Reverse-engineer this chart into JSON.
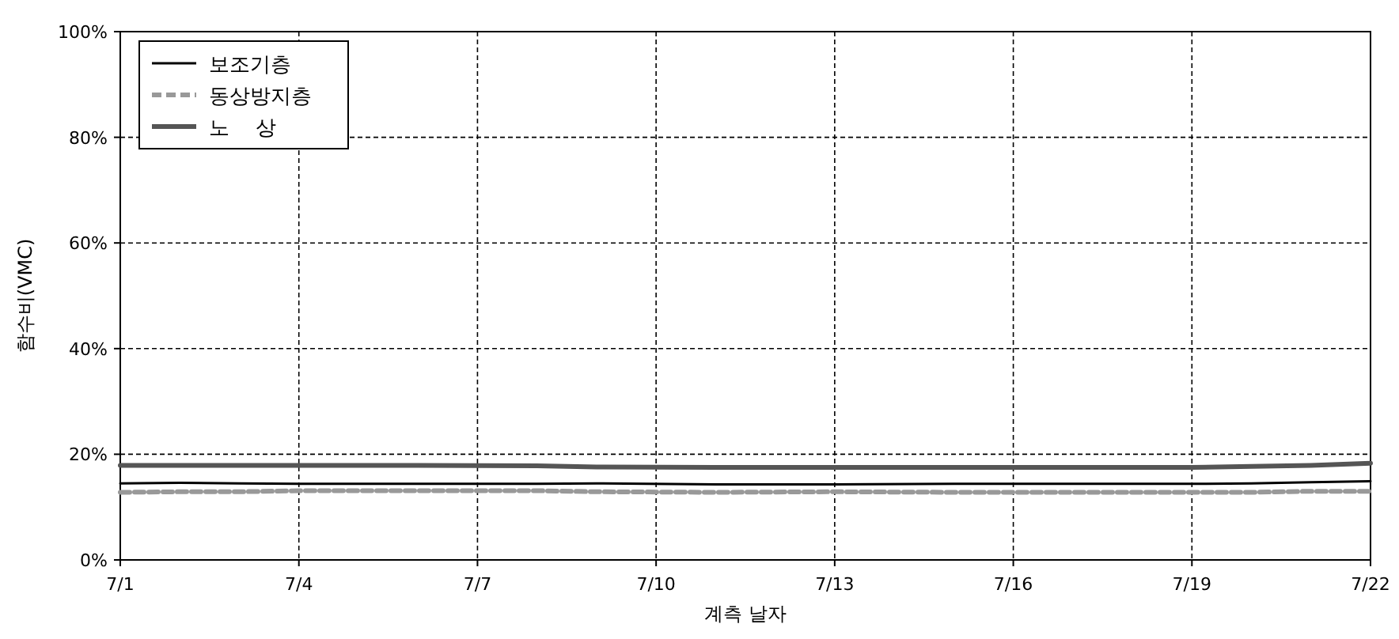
{
  "chart_data": {
    "type": "line",
    "xlabel": "계측 날자",
    "ylabel": "함수비(VMC)",
    "xlim": [
      "--07-01",
      "--07-22"
    ],
    "ylim": [
      0,
      100
    ],
    "xticks": [
      {
        "value": "--07-01",
        "label": "7/1"
      },
      {
        "value": "--07-04",
        "label": "7/4"
      },
      {
        "value": "--07-07",
        "label": "7/7"
      },
      {
        "value": "--07-10",
        "label": "7/10"
      },
      {
        "value": "--07-13",
        "label": "7/13"
      },
      {
        "value": "--07-16",
        "label": "7/16"
      },
      {
        "value": "--07-19",
        "label": "7/19"
      },
      {
        "value": "--07-22",
        "label": "7/22"
      }
    ],
    "yticks": [
      {
        "value": 0,
        "label": "0%"
      },
      {
        "value": 20,
        "label": "20%"
      },
      {
        "value": 40,
        "label": "40%"
      },
      {
        "value": 60,
        "label": "60%"
      },
      {
        "value": 80,
        "label": "80%"
      },
      {
        "value": 100,
        "label": "100%"
      }
    ],
    "grid": true,
    "legend": "top left",
    "x": [
      "--07-01",
      "--07-02",
      "--07-03",
      "--07-04",
      "--07-06",
      "--07-08",
      "--07-09",
      "--07-11",
      "--07-13",
      "--07-15",
      "--07-17",
      "--07-19",
      "--07-20",
      "--07-21",
      "--07-22"
    ],
    "series": [
      {
        "name": "보조기층",
        "color": "#000000",
        "line_style": "solid",
        "values": [
          14.5,
          14.6,
          14.5,
          14.4,
          14.4,
          14.4,
          14.5,
          14.3,
          14.3,
          14.4,
          14.4,
          14.4,
          14.5,
          14.7,
          14.9
        ]
      },
      {
        "name": "동상방지층",
        "color": "#999999",
        "line_style": "dashed",
        "values": [
          12.8,
          12.9,
          12.9,
          13.1,
          13.1,
          13.1,
          12.9,
          12.8,
          12.9,
          12.8,
          12.8,
          12.8,
          12.8,
          13.0,
          13.0
        ]
      },
      {
        "name": "노    상",
        "color": "#555555",
        "line_style": "solid",
        "values": [
          17.9,
          17.9,
          17.9,
          17.9,
          17.9,
          17.8,
          17.6,
          17.5,
          17.5,
          17.5,
          17.5,
          17.5,
          17.7,
          17.9,
          18.3
        ]
      }
    ]
  }
}
